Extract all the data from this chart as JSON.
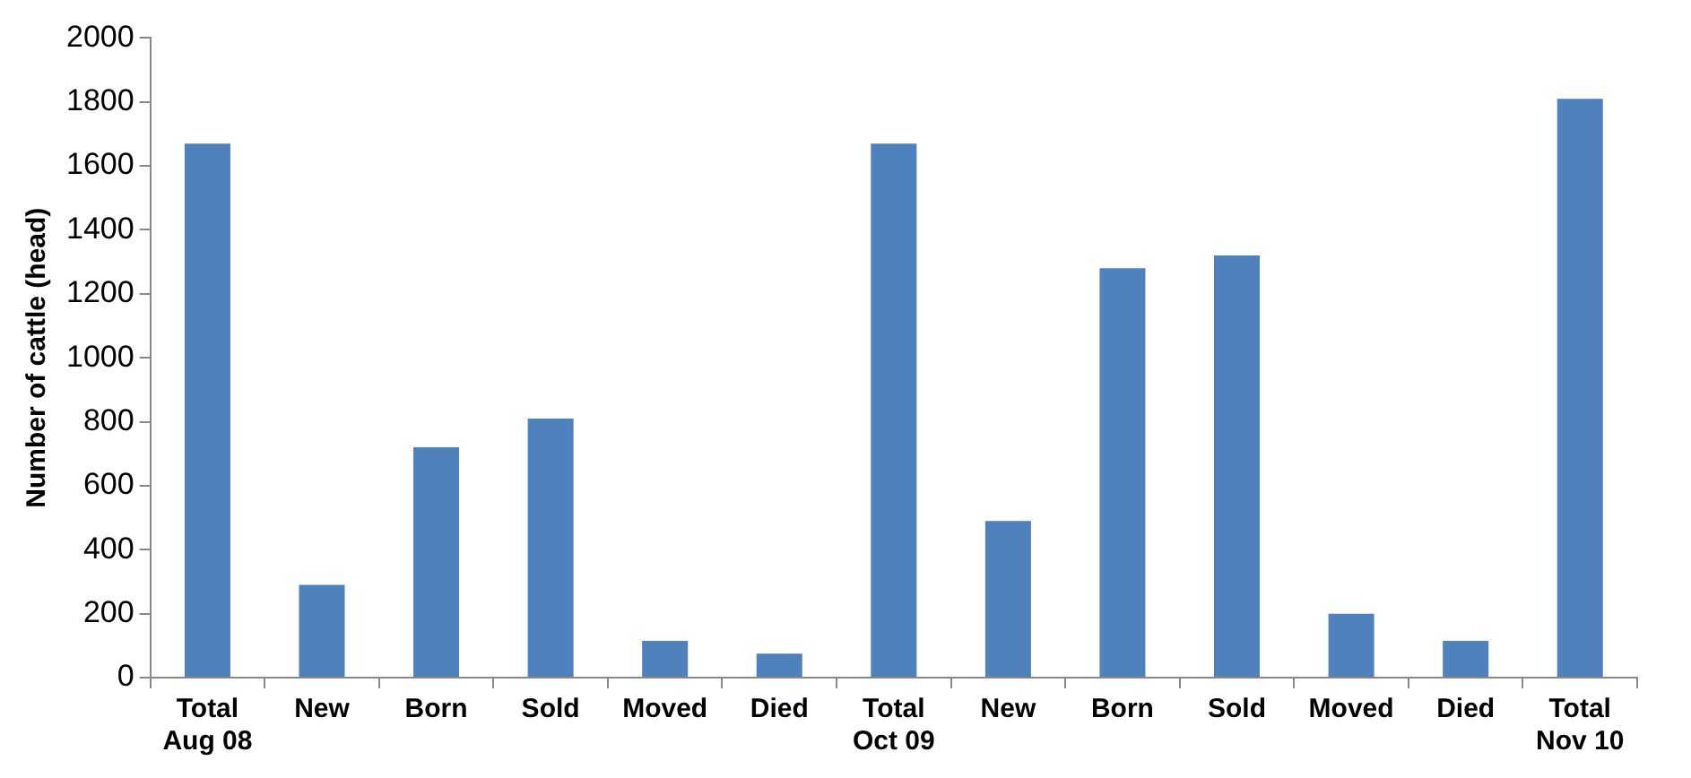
{
  "chart_data": {
    "type": "bar",
    "ylabel": "Number of cattle (head)",
    "categories": [
      "Total\nAug 08",
      "New",
      "Born",
      "Sold",
      "Moved",
      "Died",
      "Total\nOct 09",
      "New",
      "Born",
      "Sold",
      "Moved",
      "Died",
      "Total\nNov 10"
    ],
    "values": [
      1670,
      290,
      720,
      810,
      115,
      75,
      1670,
      490,
      1280,
      1320,
      200,
      115,
      1810
    ],
    "color": "#4f81bd",
    "ylim": [
      0,
      2000
    ],
    "yticks": [
      0,
      200,
      400,
      600,
      800,
      1000,
      1200,
      1400,
      1600,
      1800,
      2000
    ],
    "grid": false
  }
}
